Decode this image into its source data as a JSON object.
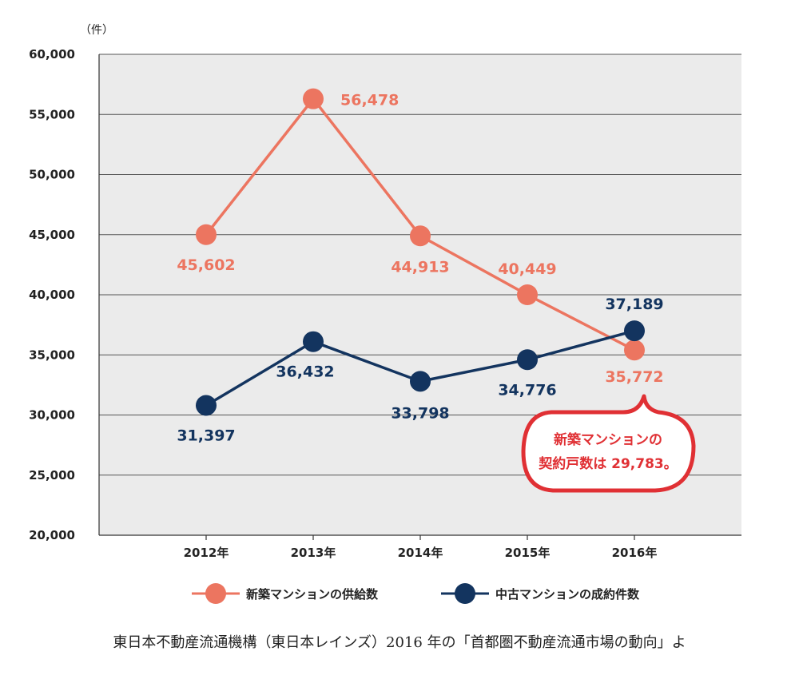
{
  "chart_data": {
    "type": "line",
    "unit_label": "（件）",
    "categories": [
      "2012年",
      "2013年",
      "2014年",
      "2015年",
      "2016年"
    ],
    "y_ticks": [
      "60,000",
      "55,000",
      "50,000",
      "45,000",
      "40,000",
      "35,000",
      "30,000",
      "25,000",
      "20,000"
    ],
    "ylim": [
      20000,
      60000
    ],
    "grid": true,
    "series": [
      {
        "name": "新築マンションの供給数",
        "color": "#ec7560",
        "values": [
          45000,
          56300,
          44900,
          40000,
          35400
        ],
        "labels": [
          "45,602",
          "56,478",
          "44,913",
          "40,449",
          "35,772"
        ]
      },
      {
        "name": "中古マンションの成約件数",
        "color": "#13345f",
        "values": [
          30800,
          36100,
          32800,
          34600,
          37000
        ],
        "labels": [
          "31,397",
          "36,432",
          "33,798",
          "34,776",
          "37,189"
        ]
      }
    ],
    "annotation": {
      "line1": "新築マンションの",
      "line2": "契約戸数は 29,783。",
      "color": "#e03034"
    },
    "legend_position": "bottom",
    "plot_bg": "#ebebeb"
  },
  "source": "東日本不動産流通機構（東日本レインズ）2016 年の「首都圏不動産流通市場の動向」よ"
}
